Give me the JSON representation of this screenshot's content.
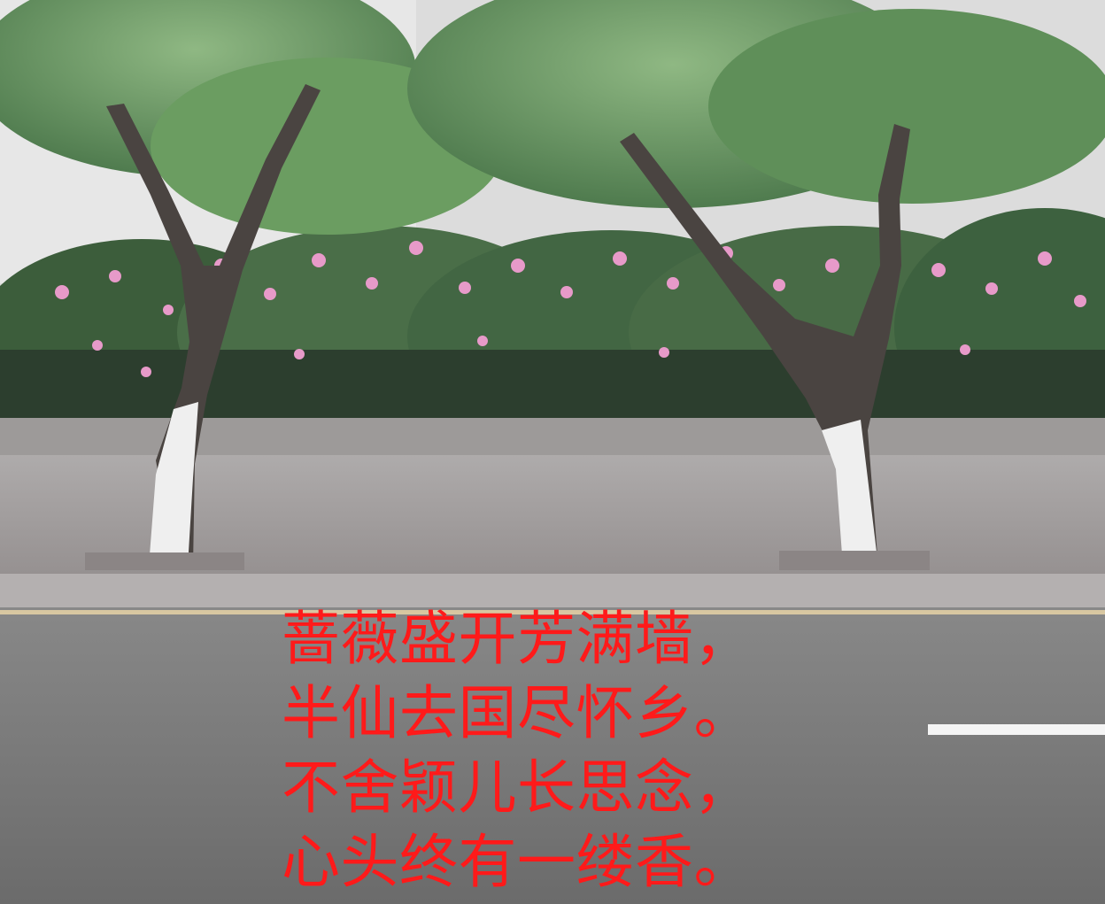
{
  "scene": {
    "subjects": [
      "tree-left",
      "tree-right",
      "rose-hedge",
      "sidewalk",
      "curb",
      "road",
      "lane-marking"
    ],
    "colors": {
      "sky_wall": "#dcdcdc",
      "foliage_dark": "#3d5f3d",
      "foliage_light": "#79a867",
      "rose_pink": "#e58cc7",
      "trunk_white": "#eeeeee",
      "sidewalk": "#a39f9f",
      "road": "#747474",
      "lane_yellow": "#d8c7a1",
      "lane_white": "#f4f4f4",
      "poem_text": "#ff1a1a"
    }
  },
  "poem": {
    "lines": [
      "蔷薇盛开芳满墙，",
      "半仙去国尽怀乡。",
      "不舍颖儿长思念，",
      "心头终有一缕香。"
    ]
  }
}
